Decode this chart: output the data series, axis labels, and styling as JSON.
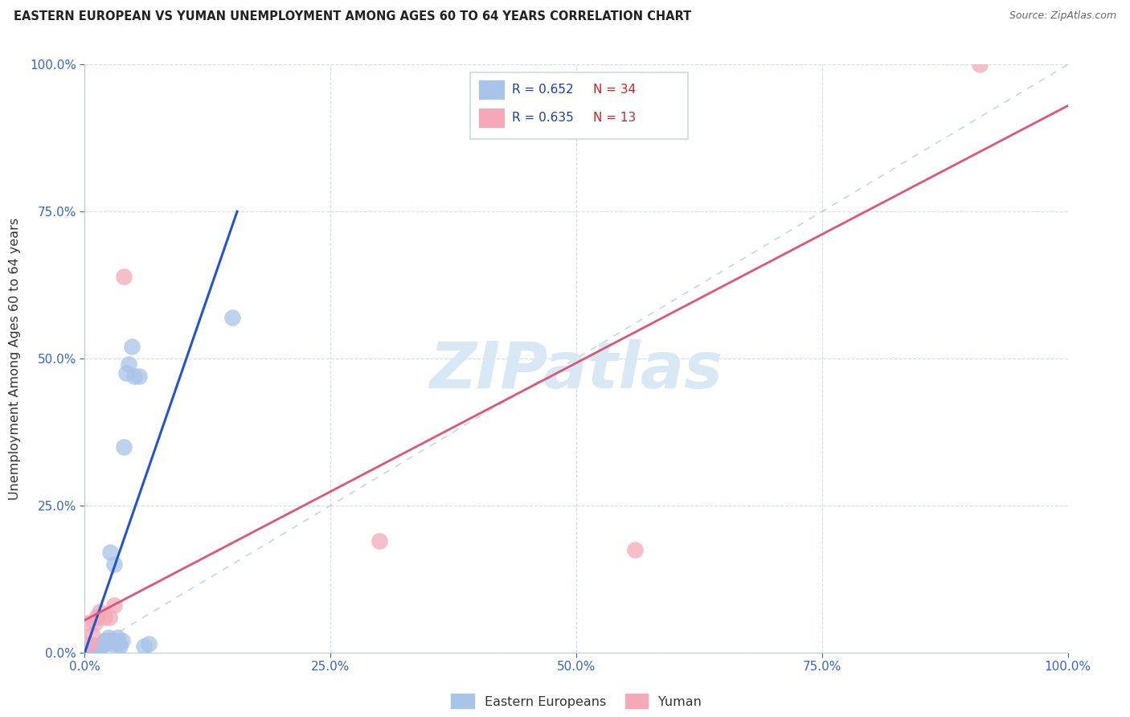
{
  "title": "EASTERN EUROPEAN VS YUMAN UNEMPLOYMENT AMONG AGES 60 TO 64 YEARS CORRELATION CHART",
  "source": "Source: ZipAtlas.com",
  "ylabel": "Unemployment Among Ages 60 to 64 years",
  "xlim": [
    0,
    1.0
  ],
  "ylim": [
    0,
    1.0
  ],
  "xticks": [
    0.0,
    0.25,
    0.5,
    0.75,
    1.0
  ],
  "yticks": [
    0.0,
    0.25,
    0.5,
    0.75,
    1.0
  ],
  "xtick_labels": [
    "0.0%",
    "25.0%",
    "50.0%",
    "75.0%",
    "100.0%"
  ],
  "ytick_labels": [
    "0.0%",
    "25.0%",
    "50.0%",
    "75.0%",
    "100.0%"
  ],
  "ee_color": "#a8c4e8",
  "yu_color": "#f4a8b8",
  "ee_R": 0.652,
  "ee_N": 34,
  "yu_R": 0.635,
  "yu_N": 13,
  "trendline_ee_color": "#2255cc",
  "trendline_yu_color": "#e05575",
  "diagonal_color": "#b8ccdd",
  "watermark": "ZIPatlas",
  "R_color": "#1a3db0",
  "N_color": "#cc2222",
  "ee_x": [
    0.005,
    0.007,
    0.008,
    0.01,
    0.01,
    0.012,
    0.013,
    0.014,
    0.015,
    0.015,
    0.018,
    0.02,
    0.022,
    0.022,
    0.024,
    0.025,
    0.026,
    0.027,
    0.028,
    0.03,
    0.032,
    0.033,
    0.035,
    0.036,
    0.038,
    0.04,
    0.042,
    0.045,
    0.048,
    0.05,
    0.055,
    0.06,
    0.065,
    0.15
  ],
  "ee_y": [
    0.005,
    0.008,
    0.006,
    0.01,
    0.012,
    0.008,
    0.01,
    0.012,
    0.01,
    0.008,
    0.015,
    0.02,
    0.015,
    0.02,
    0.025,
    0.02,
    0.17,
    0.02,
    0.015,
    0.15,
    0.02,
    0.025,
    0.015,
    0.01,
    0.02,
    0.35,
    0.475,
    0.49,
    0.52,
    0.47,
    0.47,
    0.01,
    0.015,
    0.57
  ],
  "yu_x": [
    0.003,
    0.005,
    0.008,
    0.01,
    0.012,
    0.015,
    0.02,
    0.025,
    0.03,
    0.04,
    0.3,
    0.56,
    0.91
  ],
  "yu_y": [
    0.05,
    0.015,
    0.03,
    0.05,
    0.06,
    0.07,
    0.06,
    0.06,
    0.08,
    0.64,
    0.19,
    0.175,
    1.0
  ],
  "ee_trendline_x": [
    0.0,
    0.155
  ],
  "ee_trendline_y": [
    0.0,
    0.75
  ],
  "yu_trendline_x": [
    0.0,
    1.0
  ],
  "yu_trendline_y": [
    0.055,
    0.93
  ]
}
